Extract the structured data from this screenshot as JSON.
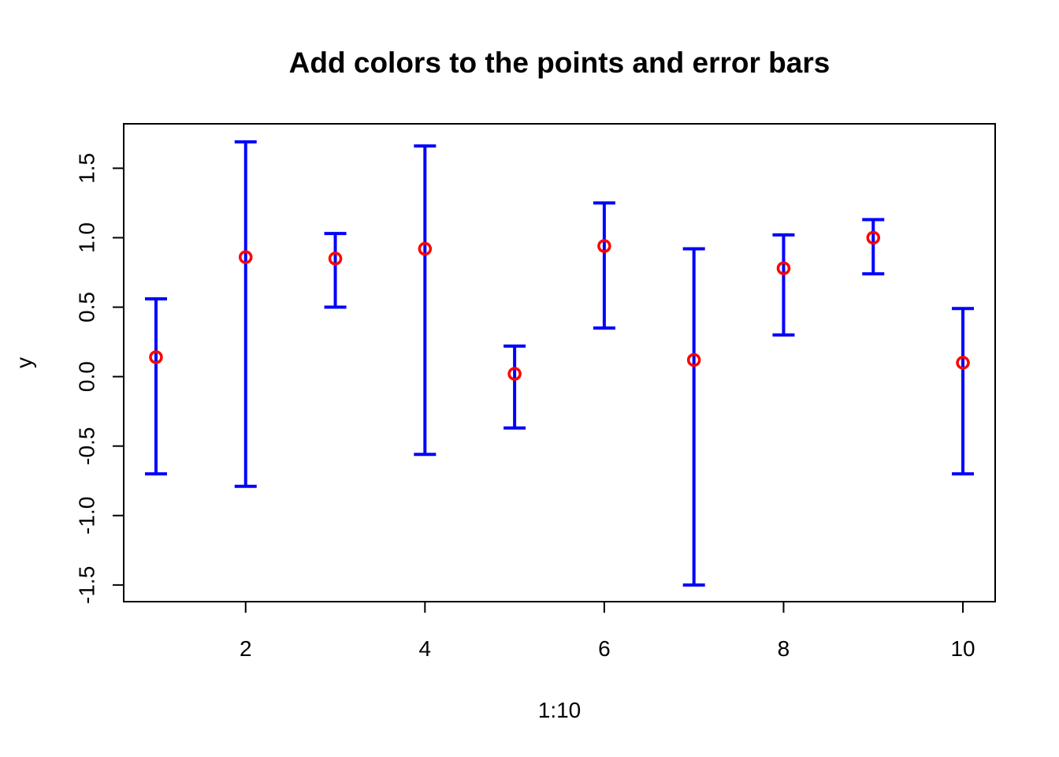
{
  "colors": {
    "point": "#ff0000",
    "error_bar": "#0000ff",
    "axis": "#000000",
    "background": "#ffffff"
  },
  "chart_data": {
    "type": "scatter",
    "title": "Add colors to the points and error bars",
    "xlabel": "1:10",
    "ylabel": "y",
    "x": [
      1,
      2,
      3,
      4,
      5,
      6,
      7,
      8,
      9,
      10
    ],
    "y": [
      0.14,
      0.86,
      0.85,
      0.92,
      0.02,
      0.94,
      0.12,
      0.78,
      1.0,
      0.1
    ],
    "error_bars": {
      "lower": [
        -0.7,
        -0.79,
        0.5,
        -0.56,
        -0.37,
        0.35,
        -1.5,
        0.3,
        0.74,
        -0.7
      ],
      "upper": [
        0.56,
        1.69,
        1.03,
        1.66,
        0.22,
        1.25,
        0.92,
        1.02,
        1.13,
        0.49
      ]
    },
    "xlim": [
      0.64,
      10.36
    ],
    "ylim": [
      -1.62,
      1.82
    ],
    "x_ticks": [
      2,
      4,
      6,
      8,
      10
    ],
    "x_tick_labels": [
      "2",
      "4",
      "6",
      "8",
      "10"
    ],
    "y_ticks": [
      -1.5,
      -1.0,
      -0.5,
      0.0,
      0.5,
      1.0,
      1.5
    ],
    "y_tick_labels": [
      "-1.5",
      "-1.0",
      "-0.5",
      "0.0",
      "0.5",
      "1.0",
      "1.5"
    ],
    "grid": false,
    "legend": "none",
    "marker": "open-circle"
  }
}
